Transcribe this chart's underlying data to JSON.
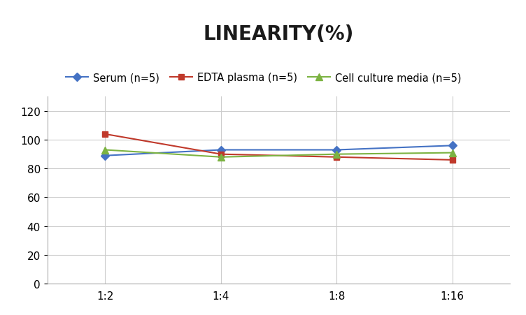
{
  "title": "LINEARITY(%)",
  "x_labels": [
    "1:2",
    "1:4",
    "1:8",
    "1:16"
  ],
  "x_positions": [
    0,
    1,
    2,
    3
  ],
  "series": [
    {
      "label": "Serum (n=5)",
      "values": [
        89,
        93,
        93,
        96
      ],
      "color": "#4472C4",
      "marker": "D",
      "linewidth": 1.5,
      "markersize": 6
    },
    {
      "label": "EDTA plasma (n=5)",
      "values": [
        104,
        90,
        88,
        86
      ],
      "color": "#C0392B",
      "marker": "s",
      "linewidth": 1.5,
      "markersize": 6
    },
    {
      "label": "Cell culture media (n=5)",
      "values": [
        93,
        88,
        90,
        91
      ],
      "color": "#7CB342",
      "marker": "^",
      "linewidth": 1.5,
      "markersize": 7
    }
  ],
  "ylim": [
    0,
    130
  ],
  "yticks": [
    0,
    20,
    40,
    60,
    80,
    100,
    120
  ],
  "background_color": "#ffffff",
  "grid_color": "#cccccc",
  "title_fontsize": 20,
  "legend_fontsize": 10.5,
  "tick_fontsize": 11
}
